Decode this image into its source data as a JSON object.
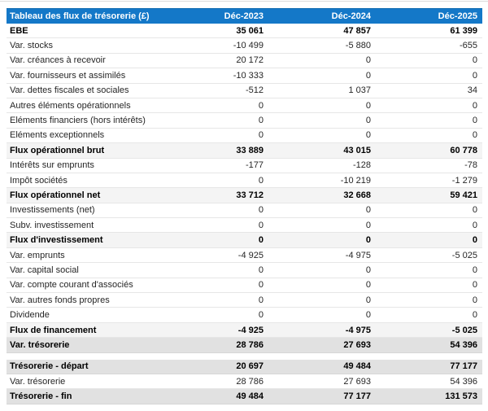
{
  "colors": {
    "header_bg": "#1478c8",
    "header_text": "#ffffff",
    "subtotal_bg": "#f4f4f4",
    "major_bg": "#e1e1e1"
  },
  "table": {
    "header": {
      "label": "Tableau des flux de trésorerie (£)",
      "columns": [
        "Déc-2023",
        "Déc-2024",
        "Déc-2025"
      ]
    },
    "rows": [
      {
        "label": "EBE",
        "values": [
          "35 061",
          "47 857",
          "61 399"
        ],
        "style": "bold"
      },
      {
        "label": "Var. stocks",
        "values": [
          "-10 499",
          "-5 880",
          "-655"
        ],
        "style": "normal"
      },
      {
        "label": "Var. créances à recevoir",
        "values": [
          "20 172",
          "0",
          "0"
        ],
        "style": "normal"
      },
      {
        "label": "Var. fournisseurs et assimilés",
        "values": [
          "-10 333",
          "0",
          "0"
        ],
        "style": "normal"
      },
      {
        "label": "Var. dettes fiscales et sociales",
        "values": [
          "-512",
          "1 037",
          "34"
        ],
        "style": "normal"
      },
      {
        "label": "Autres éléments opérationnels",
        "values": [
          "0",
          "0",
          "0"
        ],
        "style": "normal"
      },
      {
        "label": "Eléments financiers (hors intérêts)",
        "values": [
          "0",
          "0",
          "0"
        ],
        "style": "normal"
      },
      {
        "label": "Eléments exceptionnels",
        "values": [
          "0",
          "0",
          "0"
        ],
        "style": "normal"
      },
      {
        "label": "Flux opérationnel brut",
        "values": [
          "33 889",
          "43 015",
          "60 778"
        ],
        "style": "subtotal"
      },
      {
        "label": "Intérêts sur emprunts",
        "values": [
          "-177",
          "-128",
          "-78"
        ],
        "style": "normal"
      },
      {
        "label": "Impôt sociétés",
        "values": [
          "0",
          "-10 219",
          "-1 279"
        ],
        "style": "normal"
      },
      {
        "label": "Flux opérationnel net",
        "values": [
          "33 712",
          "32 668",
          "59 421"
        ],
        "style": "subtotal"
      },
      {
        "label": "Investissements (net)",
        "values": [
          "0",
          "0",
          "0"
        ],
        "style": "normal"
      },
      {
        "label": "Subv. investissement",
        "values": [
          "0",
          "0",
          "0"
        ],
        "style": "normal"
      },
      {
        "label": "Flux d'investissement",
        "values": [
          "0",
          "0",
          "0"
        ],
        "style": "subtotal"
      },
      {
        "label": "Var. emprunts",
        "values": [
          "-4 925",
          "-4 975",
          "-5 025"
        ],
        "style": "normal"
      },
      {
        "label": "Var. capital social",
        "values": [
          "0",
          "0",
          "0"
        ],
        "style": "normal"
      },
      {
        "label": "Var. compte courant d'associés",
        "values": [
          "0",
          "0",
          "0"
        ],
        "style": "normal"
      },
      {
        "label": "Var. autres fonds propres",
        "values": [
          "0",
          "0",
          "0"
        ],
        "style": "normal"
      },
      {
        "label": "Dividende",
        "values": [
          "0",
          "0",
          "0"
        ],
        "style": "normal"
      },
      {
        "label": "Flux de financement",
        "values": [
          "-4 925",
          "-4 975",
          "-5 025"
        ],
        "style": "subtotal"
      },
      {
        "label": "Var. trésorerie",
        "values": [
          "28 786",
          "27 693",
          "54 396"
        ],
        "style": "major"
      },
      {
        "label": "",
        "values": [],
        "style": "spacer"
      },
      {
        "label": "Trésorerie - départ",
        "values": [
          "20 697",
          "49 484",
          "77 177"
        ],
        "style": "major"
      },
      {
        "label": "Var. trésorerie",
        "values": [
          "28 786",
          "27 693",
          "54 396"
        ],
        "style": "normal"
      },
      {
        "label": "Trésorerie - fin",
        "values": [
          "49 484",
          "77 177",
          "131 573"
        ],
        "style": "major"
      }
    ]
  }
}
